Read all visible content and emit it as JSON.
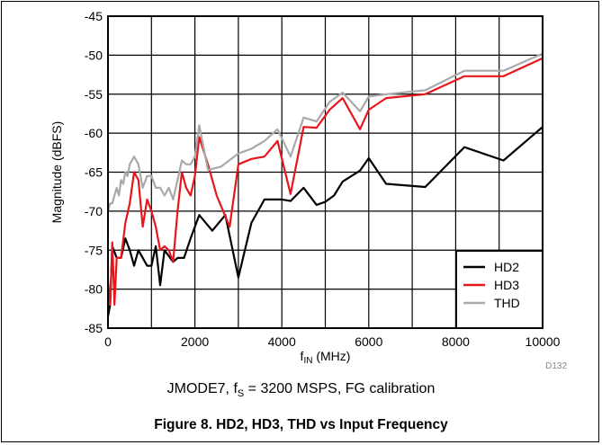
{
  "chart_data": {
    "type": "line",
    "xlabel_main": "f",
    "xlabel_sub": "IN",
    "xlabel_rest": " (MHz)",
    "ylabel": "Magnitude (dBFS)",
    "xlim": [
      0,
      10000
    ],
    "ylim": [
      -85,
      -45
    ],
    "x_ticks": [
      0,
      2000,
      4000,
      6000,
      8000,
      10000
    ],
    "y_ticks": [
      -45,
      -50,
      -55,
      -60,
      -65,
      -70,
      -75,
      -80,
      -85
    ],
    "grid": true,
    "legend_position": "bottom-right",
    "series": [
      {
        "name": "HD2",
        "color": "#000000",
        "points": [
          [
            0,
            -83.5
          ],
          [
            50,
            -82
          ],
          [
            100,
            -74.5
          ],
          [
            200,
            -76
          ],
          [
            300,
            -76
          ],
          [
            400,
            -73.5
          ],
          [
            500,
            -75
          ],
          [
            600,
            -77
          ],
          [
            700,
            -75
          ],
          [
            900,
            -77
          ],
          [
            1000,
            -77
          ],
          [
            1100,
            -74.5
          ],
          [
            1200,
            -79.5
          ],
          [
            1300,
            -75
          ],
          [
            1500,
            -76.5
          ],
          [
            1600,
            -76
          ],
          [
            1750,
            -76
          ],
          [
            1900,
            -73.5
          ],
          [
            2100,
            -70.5
          ],
          [
            2400,
            -72.5
          ],
          [
            2700,
            -70.5
          ],
          [
            3000,
            -78.5
          ],
          [
            3300,
            -71.5
          ],
          [
            3600,
            -68.5
          ],
          [
            4000,
            -68.5
          ],
          [
            4200,
            -68.7
          ],
          [
            4500,
            -67
          ],
          [
            4800,
            -69.2
          ],
          [
            5000,
            -68.8
          ],
          [
            5200,
            -68
          ],
          [
            5400,
            -66.2
          ],
          [
            5800,
            -64.8
          ],
          [
            6000,
            -63.2
          ],
          [
            6400,
            -66.5
          ],
          [
            7300,
            -66.9
          ],
          [
            8200,
            -61.8
          ],
          [
            9100,
            -63.5
          ],
          [
            10000,
            -59.2
          ]
        ]
      },
      {
        "name": "HD3",
        "color": "#e8151b",
        "points": [
          [
            0,
            -79
          ],
          [
            50,
            -82
          ],
          [
            100,
            -74
          ],
          [
            150,
            -82
          ],
          [
            200,
            -76
          ],
          [
            300,
            -76
          ],
          [
            400,
            -71.5
          ],
          [
            500,
            -69
          ],
          [
            600,
            -65
          ],
          [
            700,
            -66
          ],
          [
            800,
            -72
          ],
          [
            900,
            -68.5
          ],
          [
            1000,
            -70
          ],
          [
            1100,
            -72
          ],
          [
            1200,
            -75
          ],
          [
            1300,
            -74.5
          ],
          [
            1400,
            -75
          ],
          [
            1500,
            -76.5
          ],
          [
            1600,
            -70
          ],
          [
            1700,
            -65
          ],
          [
            1800,
            -67
          ],
          [
            1900,
            -68
          ],
          [
            2000,
            -65.5
          ],
          [
            2100,
            -60.5
          ],
          [
            2300,
            -64
          ],
          [
            2500,
            -68
          ],
          [
            2800,
            -72
          ],
          [
            3000,
            -64
          ],
          [
            3300,
            -63.3
          ],
          [
            3600,
            -63
          ],
          [
            3900,
            -61
          ],
          [
            4200,
            -67.8
          ],
          [
            4500,
            -59.2
          ],
          [
            4800,
            -59.3
          ],
          [
            5100,
            -57
          ],
          [
            5400,
            -55.5
          ],
          [
            5800,
            -59.5
          ],
          [
            6000,
            -57
          ],
          [
            6400,
            -55.5
          ],
          [
            7300,
            -55
          ],
          [
            8200,
            -52.7
          ],
          [
            9100,
            -52.7
          ],
          [
            10000,
            -50.4
          ]
        ]
      },
      {
        "name": "THD",
        "color": "#a9a9a9",
        "points": [
          [
            0,
            -70
          ],
          [
            50,
            -69
          ],
          [
            100,
            -69
          ],
          [
            150,
            -68
          ],
          [
            200,
            -67
          ],
          [
            250,
            -68
          ],
          [
            300,
            -66
          ],
          [
            350,
            -66.5
          ],
          [
            400,
            -65
          ],
          [
            450,
            -65.5
          ],
          [
            500,
            -64
          ],
          [
            600,
            -63
          ],
          [
            700,
            -64
          ],
          [
            800,
            -67
          ],
          [
            900,
            -65.5
          ],
          [
            1000,
            -65.5
          ],
          [
            1100,
            -67
          ],
          [
            1200,
            -67
          ],
          [
            1300,
            -68
          ],
          [
            1400,
            -67
          ],
          [
            1500,
            -68.5
          ],
          [
            1600,
            -66
          ],
          [
            1700,
            -63.5
          ],
          [
            1800,
            -64
          ],
          [
            1900,
            -64
          ],
          [
            2000,
            -63
          ],
          [
            2100,
            -59
          ],
          [
            2300,
            -64.7
          ],
          [
            2600,
            -64.3
          ],
          [
            3000,
            -62.6
          ],
          [
            3300,
            -62
          ],
          [
            3600,
            -61
          ],
          [
            3900,
            -59.5
          ],
          [
            4200,
            -63
          ],
          [
            4500,
            -58
          ],
          [
            4800,
            -58.5
          ],
          [
            5100,
            -56
          ],
          [
            5400,
            -54.8
          ],
          [
            5800,
            -57.2
          ],
          [
            6000,
            -55.3
          ],
          [
            6400,
            -55
          ],
          [
            7300,
            -54.5
          ],
          [
            8200,
            -52
          ],
          [
            9100,
            -52
          ],
          [
            10000,
            -49.8
          ]
        ]
      }
    ],
    "code_label": "D132",
    "caption_pre": "JMODE7, f",
    "caption_sub": "S",
    "caption_post": " = 3200 MSPS, FG calibration",
    "figure_title": "Figure 8. HD2, HD3, THD vs Input Frequency"
  }
}
